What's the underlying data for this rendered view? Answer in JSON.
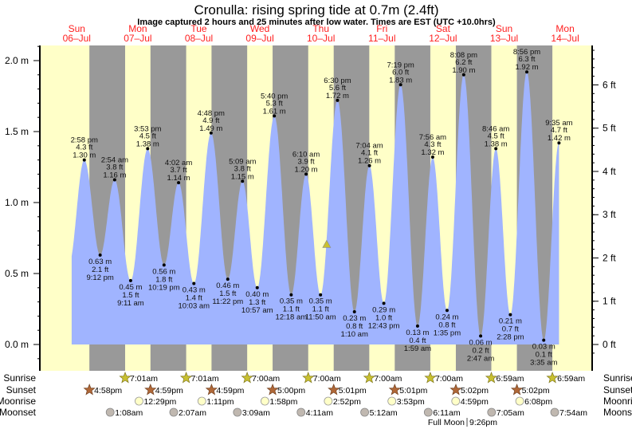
{
  "title": "Cronulla: rising  spring tide at 0.7m (2.4ft)",
  "subtitle": "Image captured 2 hours and 25 minutes after low water. Times are EST (UTC +10.0hrs)",
  "days": [
    {
      "dow": "Sun",
      "date": "06–Jul"
    },
    {
      "dow": "Mon",
      "date": "07–Jul"
    },
    {
      "dow": "Tue",
      "date": "08–Jul"
    },
    {
      "dow": "Wed",
      "date": "09–Jul"
    },
    {
      "dow": "Thu",
      "date": "10–Jul"
    },
    {
      "dow": "Fri",
      "date": "11–Jul"
    },
    {
      "dow": "Sat",
      "date": "12–Jul"
    },
    {
      "dow": "Sun",
      "date": "13–Jul"
    },
    {
      "dow": "Mon",
      "date": "14–Jul"
    }
  ],
  "colors": {
    "day": "#ffffc8",
    "night": "#999999",
    "water": "#a0b4ff",
    "day_label": "#ff2020",
    "current_marker": "#c8c030"
  },
  "chart_data": {
    "type": "area",
    "y_left": {
      "unit": "m",
      "range": [
        0,
        2.1
      ],
      "ticks": [
        "0.0 m",
        "0.5 m",
        "1.0 m",
        "1.5 m",
        "2.0 m"
      ],
      "tick_values": [
        0,
        0.5,
        1.0,
        1.5,
        2.0
      ]
    },
    "y_right": {
      "unit": "ft",
      "ticks": [
        "0 ft",
        "1 ft",
        "2 ft",
        "3 ft",
        "4 ft",
        "5 ft",
        "6 ft"
      ],
      "tick_values": [
        0,
        1,
        2,
        3,
        4,
        5,
        6
      ]
    },
    "current_marker": {
      "height_m": 0.7,
      "height_ft": 2.4
    },
    "tides": [
      {
        "day": 0,
        "time": "2:58 pm",
        "type": "high",
        "m": 1.3,
        "ft": 4.3
      },
      {
        "day": 0,
        "time": "9:12 pm",
        "type": "low",
        "m": 0.63,
        "ft": 2.1
      },
      {
        "day": 1,
        "time": "2:54 am",
        "type": "high",
        "m": 1.16,
        "ft": 3.8
      },
      {
        "day": 1,
        "time": "9:11 am",
        "type": "low",
        "m": 0.45,
        "ft": 1.5
      },
      {
        "day": 1,
        "time": "3:53 pm",
        "type": "high",
        "m": 1.38,
        "ft": 4.5
      },
      {
        "day": 1,
        "time": "10:19 pm",
        "type": "low",
        "m": 0.56,
        "ft": 1.8
      },
      {
        "day": 2,
        "time": "4:02 am",
        "type": "high",
        "m": 1.14,
        "ft": 3.7
      },
      {
        "day": 2,
        "time": "10:03 am",
        "type": "low",
        "m": 0.43,
        "ft": 1.4
      },
      {
        "day": 2,
        "time": "4:48 pm",
        "type": "high",
        "m": 1.49,
        "ft": 4.9
      },
      {
        "day": 2,
        "time": "11:22 pm",
        "type": "low",
        "m": 0.46,
        "ft": 1.5
      },
      {
        "day": 3,
        "time": "5:09 am",
        "type": "high",
        "m": 1.15,
        "ft": 3.8
      },
      {
        "day": 3,
        "time": "10:57 am",
        "type": "low",
        "m": 0.4,
        "ft": 1.3
      },
      {
        "day": 3,
        "time": "5:40 pm",
        "type": "high",
        "m": 1.61,
        "ft": 5.3
      },
      {
        "day": 4,
        "time": "12:18 am",
        "type": "low",
        "m": 0.35,
        "ft": 1.1
      },
      {
        "day": 4,
        "time": "6:10 am",
        "type": "high",
        "m": 1.2,
        "ft": 3.9
      },
      {
        "day": 4,
        "time": "11:50 am",
        "type": "low",
        "m": 0.35,
        "ft": 1.1
      },
      {
        "day": 4,
        "time": "6:30 pm",
        "type": "high",
        "m": 1.72,
        "ft": 5.6
      },
      {
        "day": 5,
        "time": "1:10 am",
        "type": "low",
        "m": 0.23,
        "ft": 0.8
      },
      {
        "day": 5,
        "time": "7:04 am",
        "type": "high",
        "m": 1.26,
        "ft": 4.1
      },
      {
        "day": 5,
        "time": "12:43 pm",
        "type": "low",
        "m": 0.29,
        "ft": 1.0
      },
      {
        "day": 5,
        "time": "7:19 pm",
        "type": "high",
        "m": 1.83,
        "ft": 6.0
      },
      {
        "day": 6,
        "time": "1:59 am",
        "type": "low",
        "m": 0.13,
        "ft": 0.4
      },
      {
        "day": 6,
        "time": "7:56 am",
        "type": "high",
        "m": 1.32,
        "ft": 4.3
      },
      {
        "day": 6,
        "time": "1:35 pm",
        "type": "low",
        "m": 0.24,
        "ft": 0.8
      },
      {
        "day": 6,
        "time": "8:08 pm",
        "type": "high",
        "m": 1.9,
        "ft": 6.2
      },
      {
        "day": 7,
        "time": "2:47 am",
        "type": "low",
        "m": 0.06,
        "ft": 0.2
      },
      {
        "day": 7,
        "time": "8:46 am",
        "type": "high",
        "m": 1.38,
        "ft": 4.5
      },
      {
        "day": 7,
        "time": "2:28 pm",
        "type": "low",
        "m": 0.21,
        "ft": 0.7
      },
      {
        "day": 7,
        "time": "8:56 pm",
        "type": "high",
        "m": 1.92,
        "ft": 6.3
      },
      {
        "day": 8,
        "time": "3:35 am",
        "type": "low",
        "m": 0.03,
        "ft": 0.1
      },
      {
        "day": 8,
        "time": "9:35 am",
        "type": "high",
        "m": 1.42,
        "ft": 4.7
      }
    ]
  },
  "astro": {
    "labels": {
      "sunrise": "Sunrise",
      "sunset": "Sunset",
      "moonrise": "Moonrise",
      "moonset": "Moonset"
    },
    "sunrise": [
      {
        "day": 1,
        "time": "7:01am"
      },
      {
        "day": 2,
        "time": "7:01am"
      },
      {
        "day": 3,
        "time": "7:00am"
      },
      {
        "day": 4,
        "time": "7:00am"
      },
      {
        "day": 5,
        "time": "7:00am"
      },
      {
        "day": 6,
        "time": "7:00am"
      },
      {
        "day": 7,
        "time": "6:59am"
      },
      {
        "day": 8,
        "time": "6:59am"
      }
    ],
    "sunset": [
      {
        "day": 0,
        "time": "4:58pm"
      },
      {
        "day": 1,
        "time": "4:59pm"
      },
      {
        "day": 2,
        "time": "4:59pm"
      },
      {
        "day": 3,
        "time": "5:00pm"
      },
      {
        "day": 4,
        "time": "5:01pm"
      },
      {
        "day": 5,
        "time": "5:01pm"
      },
      {
        "day": 6,
        "time": "5:02pm"
      },
      {
        "day": 7,
        "time": "5:02pm"
      }
    ],
    "moonrise": [
      {
        "day": 1,
        "time": "12:29pm"
      },
      {
        "day": 2,
        "time": "1:11pm"
      },
      {
        "day": 3,
        "time": "1:58pm"
      },
      {
        "day": 4,
        "time": "2:52pm"
      },
      {
        "day": 5,
        "time": "3:53pm"
      },
      {
        "day": 6,
        "time": "4:59pm"
      },
      {
        "day": 7,
        "time": "6:08pm"
      }
    ],
    "moonset": [
      {
        "day": 1,
        "time": "1:08am"
      },
      {
        "day": 2,
        "time": "2:07am"
      },
      {
        "day": 3,
        "time": "3:09am"
      },
      {
        "day": 4,
        "time": "4:11am"
      },
      {
        "day": 5,
        "time": "5:12am"
      },
      {
        "day": 6,
        "time": "6:11am"
      },
      {
        "day": 7,
        "time": "7:05am"
      },
      {
        "day": 8,
        "time": "7:54am"
      }
    ],
    "full_moon": {
      "label": "Full Moon",
      "day": 6,
      "time": "9:26pm"
    }
  }
}
